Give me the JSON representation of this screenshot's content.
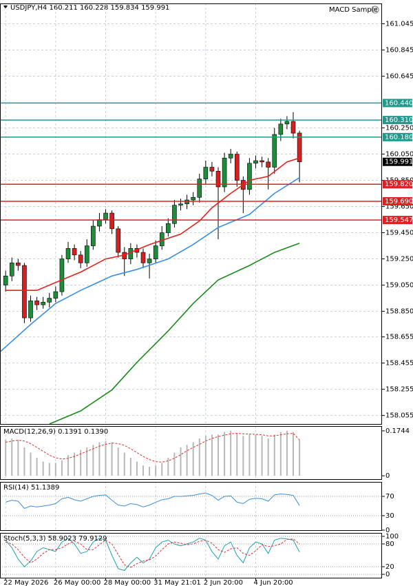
{
  "chart_data": [
    {
      "type": "candlestick",
      "title": "USDJPY,H4  160.211 160.228 159.834 159.991",
      "expert": "MACD Sample",
      "up_color": "#1e8c3a",
      "down_color": "#d42020",
      "open": [
        159.05,
        159.12,
        159.22,
        159.2,
        158.8,
        158.93,
        158.9,
        158.92,
        158.95,
        159.0,
        159.25,
        159.33,
        159.28,
        159.22,
        159.35,
        159.5,
        159.55,
        159.6,
        159.48,
        159.3,
        159.25,
        159.33,
        159.3,
        159.22,
        159.25,
        159.35,
        159.45,
        159.52,
        159.66,
        159.67,
        159.7,
        159.72,
        159.86,
        159.95,
        159.92,
        159.8,
        160.02,
        160.05,
        159.85,
        159.78,
        159.98,
        160.0,
        159.99,
        159.95,
        160.2,
        160.28,
        160.3,
        160.211
      ],
      "high": [
        159.16,
        159.26,
        159.25,
        159.22,
        158.97,
        158.96,
        158.96,
        158.99,
        159.04,
        159.28,
        159.38,
        159.36,
        159.31,
        159.4,
        159.55,
        159.6,
        159.63,
        159.62,
        159.5,
        159.34,
        159.37,
        159.36,
        159.33,
        159.29,
        159.39,
        159.5,
        159.56,
        159.7,
        159.71,
        159.74,
        159.76,
        159.9,
        160.0,
        159.99,
        159.95,
        160.06,
        160.09,
        160.07,
        159.88,
        160.02,
        160.04,
        160.03,
        160.02,
        160.25,
        160.32,
        160.34,
        160.37,
        160.228
      ],
      "low": [
        159.0,
        159.08,
        159.16,
        158.76,
        158.77,
        158.86,
        158.87,
        158.88,
        158.92,
        158.97,
        159.22,
        159.24,
        159.18,
        159.19,
        159.32,
        159.46,
        159.52,
        159.44,
        159.26,
        159.12,
        159.21,
        159.26,
        159.18,
        159.1,
        159.22,
        159.32,
        159.42,
        159.49,
        159.62,
        159.63,
        159.66,
        159.68,
        159.82,
        159.88,
        159.4,
        159.76,
        159.98,
        159.8,
        159.6,
        159.74,
        159.94,
        159.95,
        159.78,
        159.9,
        160.15,
        160.24,
        160.17,
        159.834
      ],
      "close": [
        159.12,
        159.22,
        159.2,
        158.8,
        158.93,
        158.9,
        158.92,
        158.95,
        159.0,
        159.25,
        159.33,
        159.28,
        159.22,
        159.35,
        159.5,
        159.55,
        159.6,
        159.48,
        159.3,
        159.25,
        159.33,
        159.3,
        159.22,
        159.25,
        159.35,
        159.45,
        159.52,
        159.66,
        159.67,
        159.7,
        159.72,
        159.86,
        159.95,
        159.92,
        159.8,
        160.02,
        160.05,
        159.85,
        159.78,
        159.98,
        160.0,
        159.99,
        159.95,
        160.2,
        160.28,
        160.3,
        160.21,
        159.991
      ],
      "moving_averages": [
        {
          "color": "#e8221c",
          "x": [
            0,
            5,
            8,
            12,
            16,
            19,
            23,
            28,
            31,
            33,
            36,
            39,
            42,
            45,
            47
          ],
          "values": [
            159.01,
            159.01,
            159.07,
            159.15,
            159.25,
            159.28,
            159.36,
            159.44,
            159.54,
            159.64,
            159.75,
            159.85,
            159.88,
            159.99,
            160.02
          ]
        },
        {
          "color": "#3a8fde",
          "x": [
            -0.9,
            4,
            8,
            12,
            17,
            21,
            26,
            30,
            34,
            39,
            43,
            47
          ],
          "values": [
            158.54,
            158.75,
            158.91,
            159.01,
            159.12,
            159.17,
            159.25,
            159.36,
            159.49,
            159.59,
            159.75,
            159.87
          ]
        },
        {
          "color": "#1a8a1a",
          "x": [
            7,
            12,
            17,
            21,
            26,
            30,
            34,
            39,
            43,
            47
          ],
          "values": [
            157.99,
            158.09,
            158.25,
            158.46,
            158.7,
            158.91,
            159.09,
            159.2,
            159.3,
            159.37
          ]
        }
      ],
      "levels": [
        {
          "value": 160.44,
          "label": "160.440",
          "color": "#1f9a8c"
        },
        {
          "value": 160.31,
          "label": "160.310",
          "color": "#1f9a8c"
        },
        {
          "value": 160.18,
          "label": "160.180",
          "color": "#1f9a8c"
        },
        {
          "value": 159.82,
          "label": "159.820",
          "color": "#e02020"
        },
        {
          "value": 159.69,
          "label": "159.690",
          "color": "#e02020"
        },
        {
          "value": 159.547,
          "label": "159.547",
          "color": "#e02020"
        }
      ],
      "last_price": 159.991,
      "xlim": [
        -0.9,
        60.2
      ],
      "ylim": [
        157.99,
        161.2
      ],
      "yticks": [
        161.045,
        160.845,
        160.645,
        {
          "value": 160.25,
          "label": "160.250"
        },
        {
          "value": 160.05,
          "label": "160.050"
        },
        {
          "value": 159.85,
          "label": "159.850"
        },
        {
          "value": 159.65,
          "label": "159.650"
        },
        {
          "value": 159.45,
          "label": "159.450"
        },
        {
          "value": 159.25,
          "label": "159.250"
        },
        {
          "value": 159.05,
          "label": "159.050"
        },
        {
          "value": 158.85,
          "label": "158.850"
        },
        158.655,
        158.455,
        158.255,
        158.055
      ],
      "xticks": [
        {
          "value": 0,
          "label": "22 May 2026"
        },
        {
          "value": 8,
          "label": "26 May 00:00"
        },
        {
          "value": 16,
          "label": "28 May 00:00"
        },
        {
          "value": 24,
          "label": "31 May 21:01"
        },
        {
          "value": 32,
          "label": "2 Jun 20:00"
        },
        {
          "value": 40,
          "label": "4 Jun 20:00"
        }
      ],
      "grid": true
    },
    {
      "type": "macd",
      "title": "MACD(12,26,9) 0.1391 0.1390",
      "color": "#b8b8b8",
      "signal_color": "#e03030",
      "histogram": [
        0.14,
        0.145,
        0.14,
        0.11,
        0.09,
        0.07,
        0.055,
        0.05,
        0.05,
        0.06,
        0.08,
        0.09,
        0.1,
        0.11,
        0.12,
        0.13,
        0.135,
        0.13,
        0.11,
        0.09,
        0.07,
        0.055,
        0.04,
        0.035,
        0.04,
        0.05,
        0.07,
        0.09,
        0.11,
        0.12,
        0.13,
        0.145,
        0.155,
        0.16,
        0.16,
        0.17,
        0.175,
        0.165,
        0.155,
        0.16,
        0.16,
        0.155,
        0.145,
        0.16,
        0.17,
        0.175,
        0.17,
        0.1391
      ],
      "signal": [
        0.13,
        0.135,
        0.138,
        0.135,
        0.125,
        0.11,
        0.095,
        0.08,
        0.07,
        0.065,
        0.068,
        0.075,
        0.085,
        0.095,
        0.105,
        0.115,
        0.122,
        0.127,
        0.125,
        0.118,
        0.105,
        0.09,
        0.075,
        0.063,
        0.055,
        0.053,
        0.058,
        0.068,
        0.082,
        0.097,
        0.11,
        0.122,
        0.135,
        0.145,
        0.152,
        0.158,
        0.163,
        0.165,
        0.163,
        0.162,
        0.161,
        0.159,
        0.155,
        0.155,
        0.159,
        0.163,
        0.165,
        0.139
      ],
      "xlim": [
        -0.9,
        60.2
      ],
      "ylim": [
        -0.013,
        0.193
      ],
      "yticks": [
        0,
        0.1744
      ]
    },
    {
      "type": "line",
      "title": "RSI(14) 51.1389",
      "series": [
        {
          "color": "#3a8fde",
          "values": [
            58,
            62,
            60,
            45,
            50,
            48,
            50,
            52,
            55,
            65,
            68,
            63,
            60,
            65,
            70,
            72,
            73,
            62,
            52,
            50,
            55,
            53,
            48,
            52,
            58,
            63,
            65,
            70,
            70,
            71,
            72,
            75,
            77,
            72,
            62,
            70,
            71,
            58,
            55,
            64,
            66,
            65,
            60,
            73,
            75,
            74,
            72,
            51.1389
          ]
        }
      ],
      "xlim": [
        -0.9,
        60.2
      ],
      "ylim": [
        0,
        100
      ],
      "yticks": [
        0,
        30,
        70
      ],
      "grid": true
    },
    {
      "type": "line",
      "title": "Stoch(5,3,3) 58.9023 79.9129",
      "series": [
        {
          "color": "#20a0b0",
          "values": [
            90,
            70,
            40,
            20,
            35,
            60,
            70,
            65,
            60,
            85,
            95,
            80,
            55,
            60,
            85,
            95,
            90,
            50,
            15,
            10,
            30,
            45,
            30,
            40,
            70,
            85,
            90,
            80,
            75,
            80,
            85,
            95,
            90,
            60,
            40,
            75,
            85,
            50,
            30,
            70,
            85,
            80,
            55,
            90,
            95,
            93,
            90,
            58.9023
          ]
        },
        {
          "color": "#e03030",
          "dash": true,
          "values": [
            85,
            80,
            65,
            45,
            30,
            40,
            55,
            65,
            65,
            70,
            80,
            87,
            80,
            65,
            65,
            78,
            90,
            80,
            52,
            25,
            18,
            28,
            35,
            38,
            48,
            65,
            80,
            85,
            82,
            78,
            80,
            87,
            90,
            82,
            65,
            58,
            67,
            70,
            55,
            50,
            62,
            78,
            73,
            75,
            80,
            92,
            93,
            79.9129
          ]
        }
      ],
      "xlim": [
        -0.9,
        60.2
      ],
      "ylim": [
        -9,
        109
      ],
      "yticks": [
        0,
        20,
        80,
        100
      ],
      "grid": true
    }
  ]
}
